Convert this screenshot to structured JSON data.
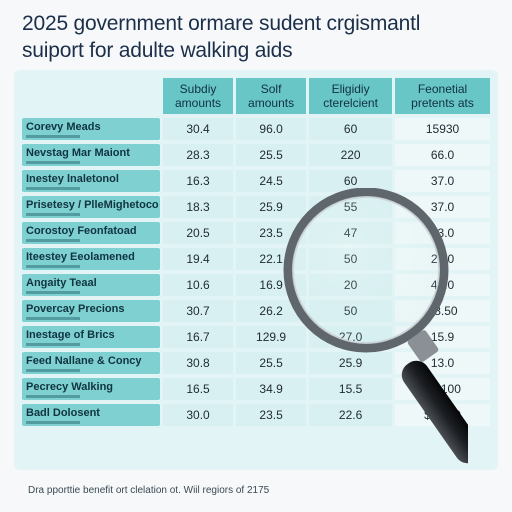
{
  "title": {
    "line1": "2025 government ormare sudent crgismantl",
    "line2": "suiport for adulte walking aids"
  },
  "table": {
    "headers": [
      [
        "Subdiy",
        "amounts"
      ],
      [
        "Solf",
        "amounts"
      ],
      [
        "Eligidiy",
        "cterelcient"
      ],
      [
        "Feonetial",
        "pretents ats"
      ]
    ],
    "rows": [
      {
        "label": "Corevy Meads",
        "values": [
          "30.4",
          "96.0",
          "60",
          "15930"
        ]
      },
      {
        "label": "Nevstag Mar Maiont",
        "values": [
          "28.3",
          "25.5",
          "220",
          "66.0"
        ]
      },
      {
        "label": "Inestey lnaletonol",
        "values": [
          "16.3",
          "24.5",
          "60",
          "37.0"
        ]
      },
      {
        "label": "Prisetesy / PlleMighetoco",
        "values": [
          "18.3",
          "25.9",
          "55",
          "37.0"
        ]
      },
      {
        "label": "Corostoy Feonfatoad",
        "values": [
          "20.5",
          "23.5",
          "47",
          "53.0"
        ]
      },
      {
        "label": "Iteestey Eeolamened",
        "values": [
          "19.4",
          "22.1",
          "50",
          "27.0"
        ]
      },
      {
        "label": "Angaity Teaal",
        "values": [
          "10.6",
          "16.9",
          "20",
          "42.0"
        ]
      },
      {
        "label": "Povercay Precions",
        "values": [
          "30.7",
          "26.2",
          "50",
          "£8.50"
        ]
      },
      {
        "label": "Inestage of Brics",
        "values": [
          "16.7",
          "129.9",
          "27.0",
          "15.9"
        ]
      },
      {
        "label": "Feed Nallane & Concy",
        "values": [
          "30.8",
          "25.5",
          "25.9",
          "13.0"
        ]
      },
      {
        "label": "Pecrecy Walking",
        "values": [
          "16.5",
          "34.9",
          "15.5",
          "$3,100"
        ]
      },
      {
        "label": "Badl Dolosent",
        "values": [
          "30.0",
          "23.5",
          "22.6",
          "$6,600"
        ]
      }
    ]
  },
  "footnote": "Dra pporttie benefit ort clelation ot. Wiil regiors of 2175",
  "colors": {
    "header": "#69c6c7",
    "row_label": "#7ed0d1",
    "cell": "#d8f0f1",
    "title": "#1c2f4a"
  },
  "icons": {
    "magnifier": "magnifying-glass-icon"
  }
}
